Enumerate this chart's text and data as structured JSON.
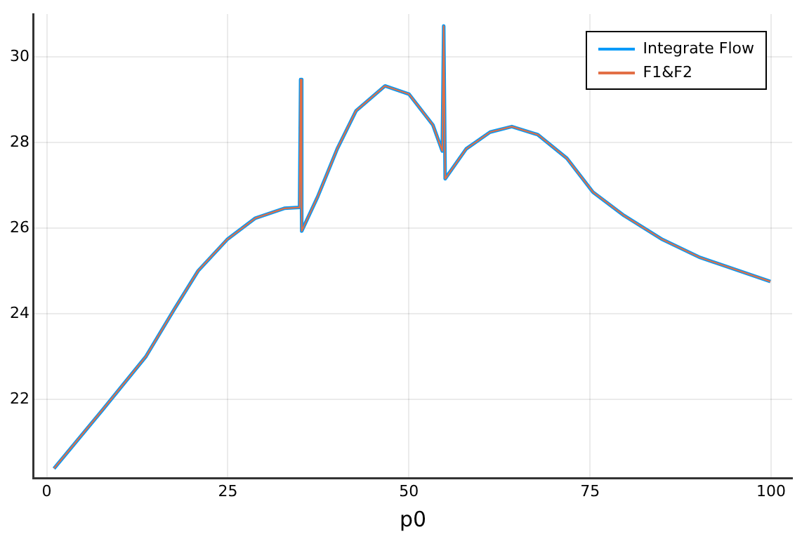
{
  "chart_data": {
    "type": "line",
    "xlabel": "p0",
    "xlim": [
      -1.8,
      102.9
    ],
    "ylim": [
      20.15,
      31.0
    ],
    "xticks": [
      0,
      25,
      50,
      75,
      100
    ],
    "yticks": [
      22,
      24,
      26,
      28,
      30
    ],
    "grid": true,
    "legend": "top right",
    "marker": "none",
    "line_style": "solid",
    "x": [
      1,
      7.7,
      13.7,
      17.6,
      20.9,
      24.9,
      28.8,
      32.8,
      34.9,
      35.05,
      35.2,
      37.4,
      40.1,
      42.7,
      46.7,
      50,
      53.3,
      54.6,
      54.8,
      55,
      57.9,
      61.2,
      64.2,
      67.8,
      71.8,
      75.4,
      79.7,
      85,
      90.2,
      99.9
    ],
    "series": [
      {
        "name": "Integrate Flow",
        "color": "#009af9",
        "values": [
          20.38,
          21.75,
          23.0,
          24.1,
          25.0,
          25.73,
          26.23,
          26.46,
          26.48,
          29.47,
          25.93,
          26.73,
          27.85,
          28.74,
          29.32,
          29.13,
          28.41,
          27.8,
          30.72,
          27.15,
          27.85,
          28.24,
          28.37,
          28.18,
          27.63,
          26.84,
          26.29,
          25.73,
          25.31,
          24.75
        ]
      },
      {
        "name": "F1&F2",
        "color": "#e26f46",
        "values": [
          20.38,
          21.75,
          23.0,
          24.1,
          25.0,
          25.73,
          26.23,
          26.46,
          26.48,
          29.47,
          25.93,
          26.73,
          27.85,
          28.74,
          29.32,
          29.13,
          28.41,
          27.8,
          30.72,
          27.15,
          27.85,
          28.24,
          28.37,
          28.18,
          27.63,
          26.84,
          26.29,
          25.73,
          25.31,
          24.75
        ]
      }
    ]
  }
}
